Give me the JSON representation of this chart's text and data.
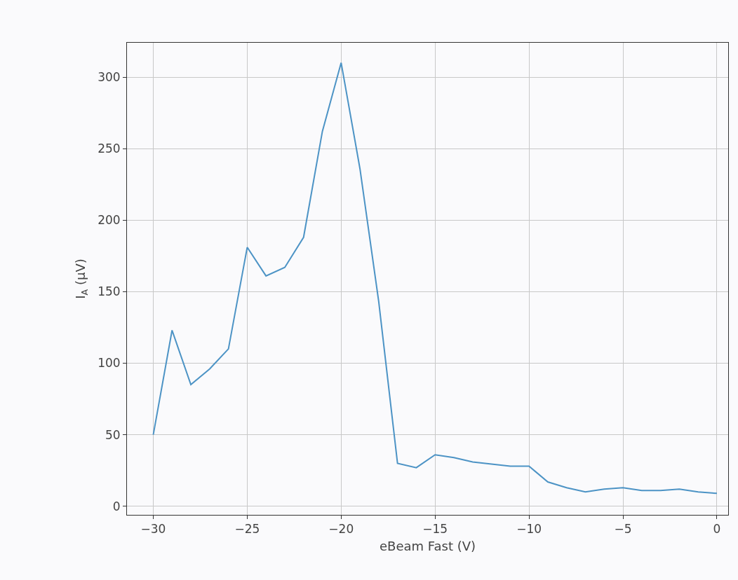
{
  "chart_data": {
    "type": "line",
    "xlabel": "eBeam Fast (V)",
    "ylabel": "I$_{A}$ (µV)",
    "x": [
      -30,
      -29,
      -28,
      -27,
      -26,
      -25,
      -24,
      -23,
      -22,
      -21,
      -20,
      -19,
      -18,
      -17,
      -16,
      -15,
      -14,
      -13,
      -12,
      -11,
      -10,
      -9,
      -8,
      -7,
      -6,
      -5,
      -4,
      -3,
      -2,
      -1,
      0
    ],
    "series": [
      {
        "color": "#4c93c5",
        "values": [
          50,
          123,
          85,
          96,
          110,
          181,
          161,
          167,
          188,
          262,
          310,
          236,
          143,
          30,
          27,
          36,
          34,
          31,
          29.5,
          28,
          28,
          17,
          13,
          10,
          12,
          13,
          11,
          11,
          12,
          10,
          9
        ]
      }
    ],
    "xlim": [
      -31.4,
      0.6
    ],
    "xticks": [
      -30,
      -25,
      -20,
      -15,
      -10,
      -5,
      0
    ],
    "ylim": [
      -6,
      324
    ],
    "yticks": [
      0,
      50,
      100,
      150,
      200,
      250,
      300
    ],
    "grid": true,
    "legend": false,
    "marker": "none",
    "line_style": "solid"
  }
}
